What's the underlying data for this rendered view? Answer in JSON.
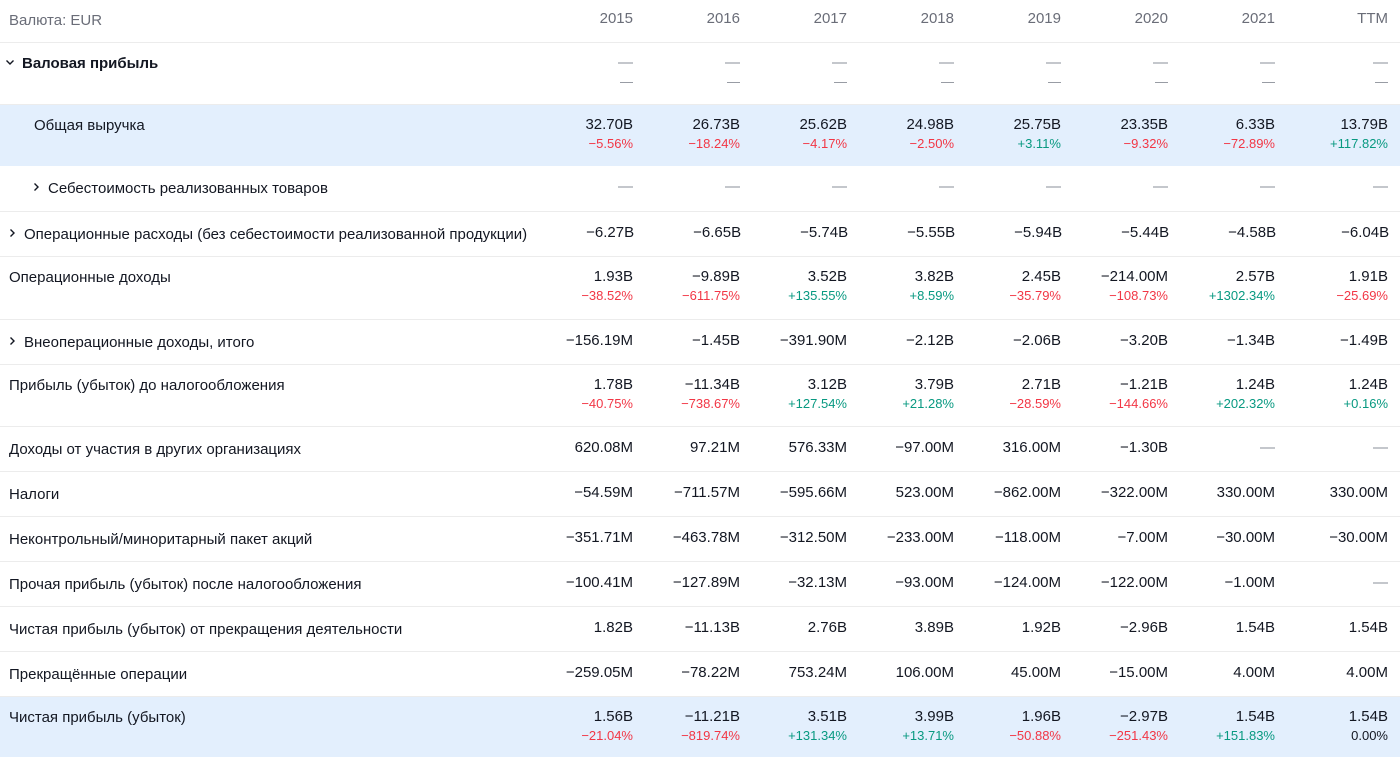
{
  "header": {
    "currency": "Валюта: EUR",
    "years": [
      "2015",
      "2016",
      "2017",
      "2018",
      "2019",
      "2020",
      "2021",
      "TTM"
    ]
  },
  "rows": [
    {
      "label": "Валовая прибыль",
      "chevron": "chevron-down-icon",
      "values": [
        "—",
        "—",
        "—",
        "—",
        "—",
        "—",
        "—",
        "—"
      ],
      "changes": [
        "—",
        "—",
        "—",
        "—",
        "—",
        "—",
        "—",
        "—"
      ]
    },
    {
      "label": "Общая выручка",
      "values": [
        "32.70B",
        "26.73B",
        "25.62B",
        "24.98B",
        "25.75B",
        "23.35B",
        "6.33B",
        "13.79B"
      ],
      "changes": [
        "−5.56%",
        "−18.24%",
        "−4.17%",
        "−2.50%",
        "+3.11%",
        "−9.32%",
        "−72.89%",
        "+117.82%"
      ]
    },
    {
      "label": "Себестоимость реализованных товаров",
      "chevron": "chevron-right-icon",
      "values": [
        "—",
        "—",
        "—",
        "—",
        "—",
        "—",
        "—",
        "—"
      ]
    },
    {
      "label": "Операционные расходы (без себестоимости реализованной продукции)",
      "chevron": "chevron-right-icon",
      "values": [
        "−6.27B",
        "−6.65B",
        "−5.74B",
        "−5.55B",
        "−5.94B",
        "−5.44B",
        "−4.58B",
        "−6.04B"
      ]
    },
    {
      "label": "Операционные доходы",
      "values": [
        "1.93B",
        "−9.89B",
        "3.52B",
        "3.82B",
        "2.45B",
        "−214.00M",
        "2.57B",
        "1.91B"
      ],
      "changes": [
        "−38.52%",
        "−611.75%",
        "+135.55%",
        "+8.59%",
        "−35.79%",
        "−108.73%",
        "+1302.34%",
        "−25.69%"
      ]
    },
    {
      "label": "Внеоперационные доходы, итого",
      "chevron": "chevron-right-icon",
      "values": [
        "−156.19M",
        "−1.45B",
        "−391.90M",
        "−2.12B",
        "−2.06B",
        "−3.20B",
        "−1.34B",
        "−1.49B"
      ]
    },
    {
      "label": "Прибыль (убыток) до налогообложения",
      "values": [
        "1.78B",
        "−11.34B",
        "3.12B",
        "3.79B",
        "2.71B",
        "−1.21B",
        "1.24B",
        "1.24B"
      ],
      "changes": [
        "−40.75%",
        "−738.67%",
        "+127.54%",
        "+21.28%",
        "−28.59%",
        "−144.66%",
        "+202.32%",
        "+0.16%"
      ]
    },
    {
      "label": "Доходы от участия в других организациях",
      "values": [
        "620.08M",
        "97.21M",
        "576.33M",
        "−97.00M",
        "316.00M",
        "−1.30B",
        "—",
        "—"
      ]
    },
    {
      "label": "Налоги",
      "values": [
        "−54.59M",
        "−711.57M",
        "−595.66M",
        "523.00M",
        "−862.00M",
        "−322.00M",
        "330.00M",
        "330.00M"
      ]
    },
    {
      "label": "Неконтрольный/миноритарный пакет акций",
      "values": [
        "−351.71M",
        "−463.78M",
        "−312.50M",
        "−233.00M",
        "−118.00M",
        "−7.00M",
        "−30.00M",
        "−30.00M"
      ]
    },
    {
      "label": "Прочая прибыль (убыток) после налогообложения",
      "values": [
        "−100.41M",
        "−127.89M",
        "−32.13M",
        "−93.00M",
        "−124.00M",
        "−122.00M",
        "−1.00M",
        "—"
      ]
    },
    {
      "label": "Чистая прибыль (убыток) от прекращения деятельности",
      "values": [
        "1.82B",
        "−11.13B",
        "2.76B",
        "3.89B",
        "1.92B",
        "−2.96B",
        "1.54B",
        "1.54B"
      ]
    },
    {
      "label": "Прекращённые операции",
      "values": [
        "−259.05M",
        "−78.22M",
        "753.24M",
        "106.00M",
        "45.00M",
        "−15.00M",
        "4.00M",
        "4.00M"
      ]
    },
    {
      "label": "Чистая прибыль (убыток)",
      "values": [
        "1.56B",
        "−11.21B",
        "3.51B",
        "3.99B",
        "1.96B",
        "−2.97B",
        "1.54B",
        "1.54B"
      ],
      "changes": [
        "−21.04%",
        "−819.74%",
        "+131.34%",
        "+13.71%",
        "−50.88%",
        "−251.43%",
        "+151.83%",
        "0.00%"
      ]
    }
  ],
  "colors": {
    "negative": "#f23645",
    "positive": "#089981",
    "highlight": "#e3effd"
  }
}
